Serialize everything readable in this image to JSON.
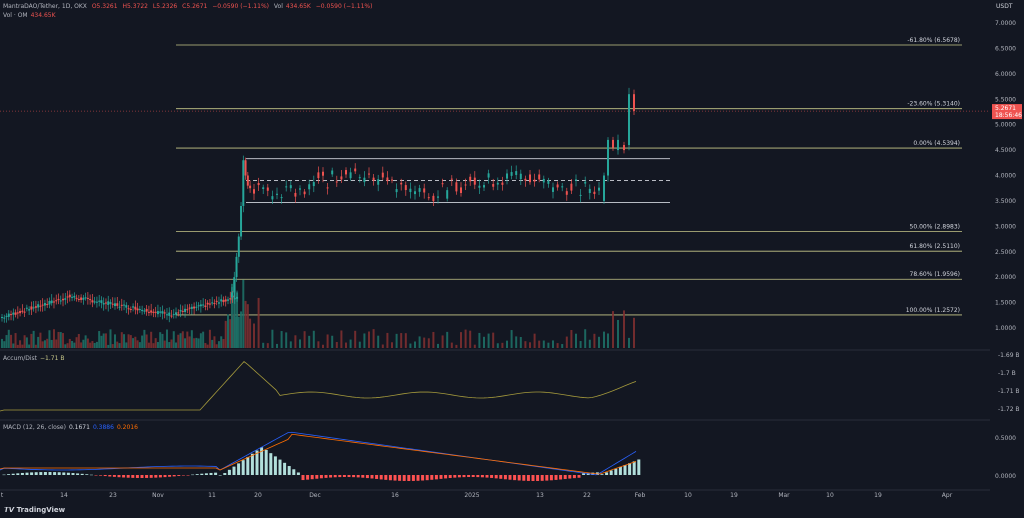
{
  "header": {
    "symbol": "MantraDAO/Tether, 1D, OKX",
    "open": "O5.3261",
    "high": "H5.3722",
    "low": "L5.2326",
    "close": "C5.2671",
    "change": "−0.0590 (−1.11%)",
    "vol_label": "Vol",
    "vol_value": "434.65K",
    "vol_change": "−0.0590 (−1.11%)",
    "vol_line": "Vol · OM",
    "vol_line_value": "434.65K",
    "currency": "USDT"
  },
  "accum": {
    "label": "Accum/Dist",
    "value": "−1.71 B"
  },
  "macd": {
    "label": "MACD (12, 26, close)",
    "v1": "0.1671",
    "v2": "0.3886",
    "v3": "0.2016"
  },
  "brand": "TradingView",
  "colors": {
    "up": "#26a69a",
    "down": "#ef5350",
    "fib": "#c8c88a",
    "white": "#d1d4dc",
    "macd": "#2962ff",
    "signal": "#ff6d00",
    "ad": "#a59a3c"
  },
  "chart_data": {
    "type": "candlestick",
    "price_ticks": [
      "7.0000",
      "6.5000",
      "6.0000",
      "5.5000",
      "5.0000",
      "4.5000",
      "4.0000",
      "3.5000",
      "3.0000",
      "2.5000",
      "2.0000",
      "1.5000",
      "1.0000"
    ],
    "last_price": "5.2671",
    "countdown": "18:56:46",
    "fib_levels": [
      {
        "label": "-61.80% (6.5678)",
        "price": 6.5678
      },
      {
        "label": "-23.60% (5.3140)",
        "price": 5.314
      },
      {
        "label": "0.00% (4.5394)",
        "price": 4.5394
      },
      {
        "label": "50.00% (2.8983)",
        "price": 2.8983
      },
      {
        "label": "61.80% (2.5110)",
        "price": 2.511
      },
      {
        "label": "78.60% (1.9596)",
        "price": 1.9596
      },
      {
        "label": "100.00% (1.2572)",
        "price": 1.2572
      }
    ],
    "range_lines": [
      4.33,
      3.9,
      3.47
    ],
    "ad_ticks": [
      "-1.69 B",
      "-1.7 B",
      "-1.71 B",
      "-1.72 B"
    ],
    "macd_ticks": [
      "0.5000",
      "0.0000"
    ],
    "x_ticks": [
      "t",
      "14",
      "23",
      "Nov",
      "11",
      "20",
      "Dec",
      "16",
      "2025",
      "13",
      "22",
      "Feb",
      "10",
      "19",
      "Mar",
      "10",
      "19",
      "Apr"
    ]
  }
}
